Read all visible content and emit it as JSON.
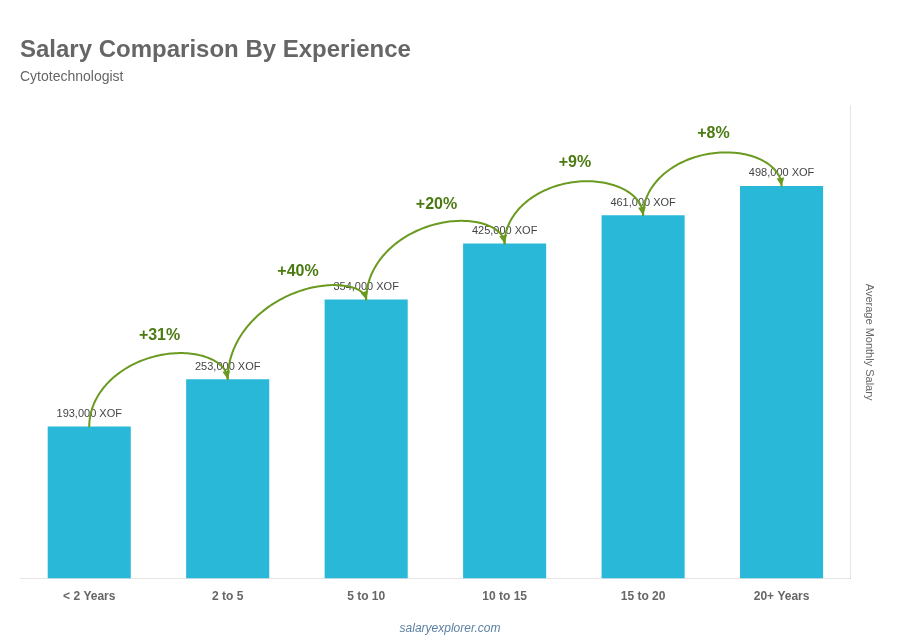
{
  "chart_data": {
    "type": "bar",
    "title": "Salary Comparison By Experience",
    "subtitle": "Cytotechnologist",
    "ylabel": "Average Monthly Salary",
    "categories": [
      "< 2 Years",
      "2 to 5",
      "5 to 10",
      "10 to 15",
      "15 to 20",
      "20+ Years"
    ],
    "values": [
      193000,
      253000,
      354000,
      425000,
      461000,
      498000
    ],
    "value_labels": [
      "193,000 XOF",
      "253,000 XOF",
      "354,000 XOF",
      "425,000 XOF",
      "461,000 XOF",
      "498,000 XOF"
    ],
    "data_labels": true,
    "annotations": [
      "+31%",
      "+40%",
      "+20%",
      "+9%",
      "+8%"
    ],
    "watermark": "salaryexplorer.com",
    "color": "#29b8d8",
    "ylim": [
      0,
      600000
    ],
    "grid": false,
    "tick_labels": "x"
  }
}
